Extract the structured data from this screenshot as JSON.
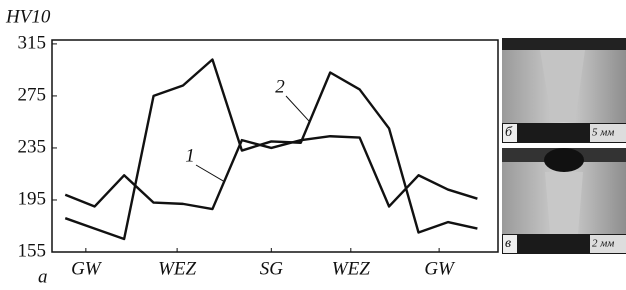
{
  "chart_data": {
    "type": "line",
    "y_label": "HV10",
    "panel_label": "a",
    "x": [
      0,
      1,
      2,
      3,
      4,
      5,
      6,
      7,
      8,
      9,
      10,
      11,
      12,
      13,
      14
    ],
    "xlim": [
      -0.45,
      14.7
    ],
    "xticks": [
      {
        "value": 0.7,
        "label": "GW"
      },
      {
        "value": 3.8,
        "label": "WEZ"
      },
      {
        "value": 7,
        "label": "SG"
      },
      {
        "value": 9.7,
        "label": "WEZ"
      },
      {
        "value": 12.7,
        "label": "GW"
      }
    ],
    "ylim": [
      155,
      318
    ],
    "yticks": [
      155,
      195,
      235,
      275,
      315
    ],
    "series": [
      {
        "name": "1",
        "color": "#111111",
        "values": [
          199,
          190,
          214,
          193,
          192,
          188,
          241,
          235,
          241,
          244,
          243,
          190,
          214,
          203,
          196
        ]
      },
      {
        "name": "2",
        "color": "#111111",
        "values": [
          181,
          173,
          165,
          275,
          283,
          303,
          233,
          240,
          239,
          293,
          280,
          250,
          170,
          178,
          173
        ]
      }
    ]
  },
  "micrographs": [
    {
      "label": "б",
      "scale": "5 мм"
    },
    {
      "label": "в",
      "scale": "2 мм"
    }
  ]
}
